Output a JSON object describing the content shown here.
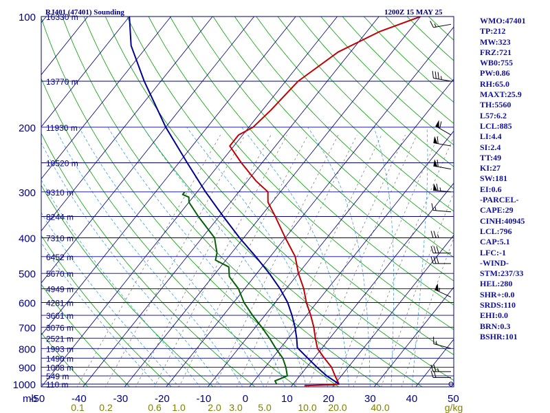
{
  "header": {
    "station": "RJ401 (47401) Sounding",
    "time": "1200Z 15 MAY 25"
  },
  "colors": {
    "frame": "#000080",
    "isobar": "#000080",
    "isotherm": "#000080",
    "dry_adiabat": "#00a000",
    "moist_adiabat": "#3fa0e0",
    "mixing_ratio": "#808080",
    "temperature": "#c00000",
    "dewpoint": "#006000",
    "parcel": "#000090",
    "text": "#000080",
    "mixing_label": "#808000"
  },
  "stats": [
    "WMO:47401",
    "TP:212",
    "MW:323",
    "FRZ:721",
    "WB0:755",
    "PW:0.86",
    "RH:65.0",
    "MAXT:25.9",
    "TH:5560",
    "L57:6.2",
    "LCL:885",
    "LI:4.4",
    "SI:2.4",
    "TT:49",
    "KI:27",
    "SW:181",
    "EI:0.6",
    "-PARCEL-",
    "CAPE:29",
    "CINH:40945",
    "LCL:796",
    "CAP:5.1",
    "LFC:-1",
    "-WIND-",
    "STM:237/33",
    "HEL:280",
    "SHR+:0.0",
    "SRDS:110",
    "EHI:0.0",
    "BRN:0.3",
    "BSHR:101"
  ],
  "chart_data": {
    "type": "line",
    "title": "RJ401 (47401) Sounding",
    "xlabel": "",
    "ylabel": "mb",
    "grid": true,
    "p_top": 100,
    "p_bottom": 1050,
    "pressure_ticks": [
      "100",
      "200",
      "300",
      "400",
      "500",
      "600",
      "700",
      "800",
      "900",
      "1000"
    ],
    "temp_ticks": [
      "-50",
      "-40",
      "-30",
      "-20",
      "-10",
      "0",
      "10",
      "20",
      "30",
      "40",
      "50"
    ],
    "height_labels": [
      {
        "p": 100,
        "text": "16330 m"
      },
      {
        "p": 150,
        "text": "13770 m"
      },
      {
        "p": 200,
        "text": "11930 m"
      },
      {
        "p": 250,
        "text": "10520 m"
      },
      {
        "p": 300,
        "text": "9310 m"
      },
      {
        "p": 350,
        "text": "8244 m"
      },
      {
        "p": 400,
        "text": "7310 m"
      },
      {
        "p": 450,
        "text": "6452 m"
      },
      {
        "p": 500,
        "text": "5670 m"
      },
      {
        "p": 550,
        "text": "4949 m"
      },
      {
        "p": 600,
        "text": "4281 m"
      },
      {
        "p": 650,
        "text": "3661 m"
      },
      {
        "p": 700,
        "text": "3076 m"
      },
      {
        "p": 750,
        "text": "2521 m"
      },
      {
        "p": 800,
        "text": "1993 m"
      },
      {
        "p": 850,
        "text": "1490 m"
      },
      {
        "p": 900,
        "text": "1008 m"
      },
      {
        "p": 950,
        "text": "549 m"
      },
      {
        "p": 1000,
        "text": "110 m"
      }
    ],
    "mixing_ratio_labels": [
      "0.1",
      "0.2",
      "0.6",
      "1.0",
      "2.0",
      "3.0",
      "5.0",
      "10.0",
      "20.0",
      "40.0",
      "g/kg"
    ],
    "mixing_ratio_values": [
      0.1,
      0.2,
      0.6,
      1.0,
      2.0,
      3.0,
      5.0,
      10.0,
      20.0,
      40.0
    ],
    "series": [
      {
        "name": "Temperature",
        "points": [
          [
            1010,
            13
          ],
          [
            1004,
            20
          ],
          [
            1000,
            21
          ],
          [
            950,
            18.5
          ],
          [
            900,
            16
          ],
          [
            850,
            12.5
          ],
          [
            800,
            9
          ],
          [
            750,
            6.5
          ],
          [
            700,
            4
          ],
          [
            650,
            1
          ],
          [
            600,
            -2.5
          ],
          [
            550,
            -5.8
          ],
          [
            500,
            -10
          ],
          [
            450,
            -14
          ],
          [
            400,
            -20
          ],
          [
            350,
            -26.5
          ],
          [
            320,
            -31
          ],
          [
            310,
            -32
          ],
          [
            300,
            -33
          ],
          [
            280,
            -38
          ],
          [
            250,
            -45
          ],
          [
            225,
            -51
          ],
          [
            210,
            -51
          ],
          [
            200,
            -49
          ],
          [
            180,
            -48
          ],
          [
            150,
            -47
          ],
          [
            125,
            -43
          ],
          [
            110,
            -37
          ],
          [
            100,
            -30
          ]
        ]
      },
      {
        "name": "Dewpoint",
        "points": [
          [
            1000,
            6
          ],
          [
            980,
            5
          ],
          [
            950,
            7
          ],
          [
            900,
            5
          ],
          [
            850,
            2.5
          ],
          [
            800,
            -1
          ],
          [
            750,
            -4.5
          ],
          [
            700,
            -8.5
          ],
          [
            650,
            -13
          ],
          [
            600,
            -17.5
          ],
          [
            550,
            -21.5
          ],
          [
            510,
            -26
          ],
          [
            480,
            -28
          ],
          [
            460,
            -32.5
          ],
          [
            440,
            -33.5
          ],
          [
            400,
            -37
          ],
          [
            350,
            -45
          ],
          [
            320,
            -50
          ],
          [
            310,
            -51
          ],
          [
            305,
            -53
          ],
          [
            300,
            -53
          ]
        ]
      },
      {
        "name": "Parcel",
        "points": [
          [
            1000,
            21
          ],
          [
            950,
            16.5
          ],
          [
            900,
            12.5
          ],
          [
            850,
            8.5
          ],
          [
            796,
            4
          ],
          [
            750,
            2
          ],
          [
            700,
            -0.5
          ],
          [
            650,
            -3.5
          ],
          [
            600,
            -7
          ],
          [
            550,
            -11.5
          ],
          [
            500,
            -17
          ],
          [
            450,
            -23.5
          ],
          [
            400,
            -31
          ],
          [
            350,
            -39
          ],
          [
            300,
            -48
          ],
          [
            250,
            -58
          ],
          [
            200,
            -70
          ],
          [
            150,
            -84
          ],
          [
            120,
            -94
          ],
          [
            100,
            -100
          ]
        ]
      }
    ],
    "winds": [
      {
        "p": 1000,
        "dir": 180,
        "spd": 0
      },
      {
        "p": 960,
        "dir": 270,
        "spd": 20
      },
      {
        "p": 925,
        "dir": 270,
        "spd": 25
      },
      {
        "p": 800,
        "dir": 285,
        "spd": 15
      },
      {
        "p": 580,
        "dir": 295,
        "spd": 55
      },
      {
        "p": 470,
        "dir": 270,
        "spd": 30
      },
      {
        "p": 440,
        "dir": 270,
        "spd": 30
      },
      {
        "p": 400,
        "dir": 270,
        "spd": 25
      },
      {
        "p": 340,
        "dir": 275,
        "spd": 15
      },
      {
        "p": 300,
        "dir": 275,
        "spd": 65
      },
      {
        "p": 260,
        "dir": 280,
        "spd": 60
      },
      {
        "p": 225,
        "dir": 280,
        "spd": 60
      },
      {
        "p": 210,
        "dir": 300,
        "spd": 60
      },
      {
        "p": 150,
        "dir": 280,
        "spd": 35
      },
      {
        "p": 105,
        "dir": 260,
        "spd": 15
      }
    ]
  }
}
